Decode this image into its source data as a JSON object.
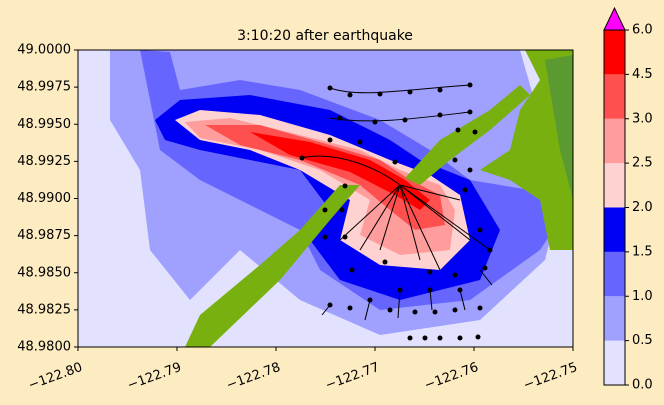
{
  "chart_data": {
    "type": "contour-map",
    "title": "3:10:20 after earthquake",
    "xlim": [
      -122.8,
      -122.75
    ],
    "ylim": [
      48.98,
      49.0
    ],
    "xticks": [
      {
        "value": -122.8,
        "label": "−122.80"
      },
      {
        "value": -122.79,
        "label": "−122.79"
      },
      {
        "value": -122.78,
        "label": "−122.78"
      },
      {
        "value": -122.77,
        "label": "−122.77"
      },
      {
        "value": -122.76,
        "label": "−122.76"
      },
      {
        "value": -122.75,
        "label": "−122.75"
      }
    ],
    "yticks": [
      {
        "value": 48.98,
        "label": "48.9800"
      },
      {
        "value": 48.9825,
        "label": "48.9825"
      },
      {
        "value": 48.985,
        "label": "48.9850"
      },
      {
        "value": 48.9875,
        "label": "48.9875"
      },
      {
        "value": 48.99,
        "label": "48.9900"
      },
      {
        "value": 48.9925,
        "label": "48.9925"
      },
      {
        "value": 48.995,
        "label": "48.9950"
      },
      {
        "value": 48.9975,
        "label": "48.9975"
      },
      {
        "value": 49.0,
        "label": "49.0000"
      }
    ],
    "colorbar": {
      "ticks": [
        {
          "value": 0,
          "label": "0.0"
        },
        {
          "value": 0.5,
          "label": "0.5"
        },
        {
          "value": 1,
          "label": "1.0"
        },
        {
          "value": 1.5,
          "label": "1.5"
        },
        {
          "value": 2,
          "label": "2.0"
        },
        {
          "value": 2.5,
          "label": "2.5"
        },
        {
          "value": 3,
          "label": "3.0"
        },
        {
          "value": 4.5,
          "label": "4.5"
        },
        {
          "value": 6,
          "label": "6.0"
        }
      ],
      "colors": [
        "#e2e2ff",
        "#a0a0ff",
        "#6666ff",
        "#0000f5",
        "#ffd2d2",
        "#ff9c9c",
        "#ff5050",
        "#ff0000"
      ],
      "extend_color": "#ff00ff"
    }
  }
}
